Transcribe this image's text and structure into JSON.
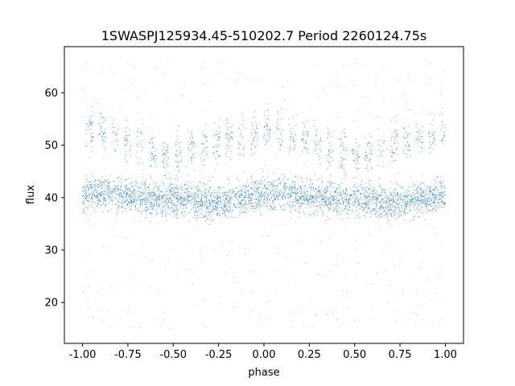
{
  "chart_data": {
    "type": "scatter",
    "title": "1SWASPJ125934.45-510202.7 Period 2260124.75s",
    "xlabel": "phase",
    "ylabel": "flux",
    "xlim": [
      -1.1,
      1.1
    ],
    "ylim": [
      12.2,
      68.8
    ],
    "xticks": [
      "-1.00",
      "-0.75",
      "-0.50",
      "-0.25",
      "0.00",
      "0.25",
      "0.50",
      "0.75",
      "1.00"
    ],
    "yticks": [
      "20",
      "30",
      "40",
      "50",
      "60"
    ],
    "grid": false,
    "point_color": "#1f77b4",
    "series": [
      {
        "x": [
          -1.0,
          -0.9,
          -0.8,
          -0.7,
          -0.6,
          -0.5,
          -0.4,
          -0.3,
          -0.2,
          -0.1,
          0.0,
          0.1,
          0.2,
          0.3,
          0.4,
          0.5,
          0.6,
          0.7,
          0.8,
          0.9,
          1.0
        ],
        "y": [
          40.5,
          41.0,
          40.5,
          40.0,
          39.5,
          40.0,
          39.5,
          39.0,
          39.5,
          40.0,
          40.5,
          41.0,
          40.5,
          40.0,
          39.5,
          40.0,
          39.5,
          39.0,
          39.5,
          40.0,
          40.5
        ],
        "description_band": "main"
      },
      {
        "x": [
          -1.0,
          -0.9,
          -0.8,
          -0.7,
          -0.6,
          -0.5,
          -0.4,
          -0.3,
          -0.2,
          -0.1,
          0.0,
          0.1,
          0.2,
          0.3,
          0.4,
          0.5,
          0.6,
          0.7,
          0.8,
          0.9,
          1.0
        ],
        "y": [
          53.0,
          52.5,
          51.5,
          50.5,
          48.5,
          48.0,
          49.0,
          50.0,
          51.0,
          51.5,
          53.0,
          52.5,
          51.5,
          50.5,
          48.5,
          48.0,
          49.0,
          50.0,
          51.0,
          51.5,
          53.0
        ],
        "description_band": "upper"
      }
    ]
  }
}
